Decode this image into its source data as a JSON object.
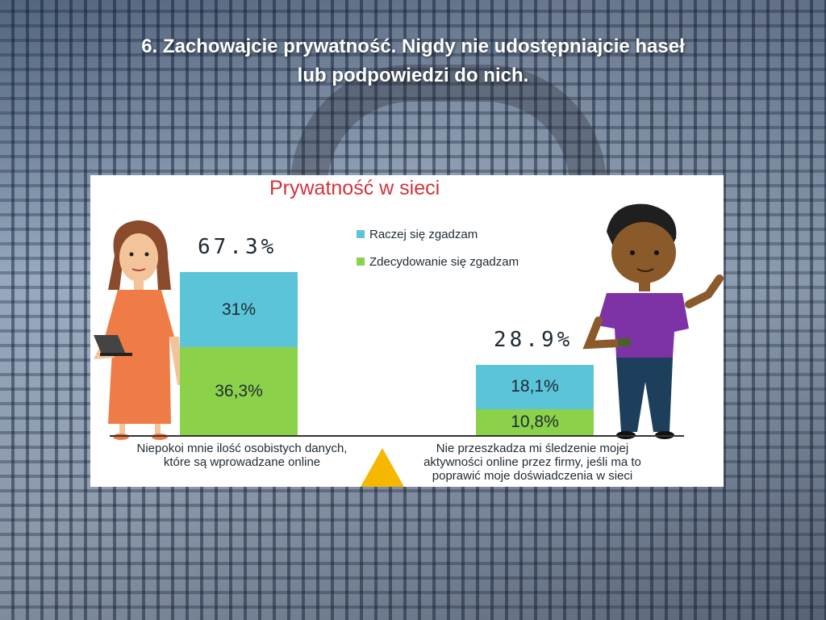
{
  "slide": {
    "title_line1": "6. Zachowajcie prywatność. Nigdy nie udostępniajcie haseł",
    "title_line2": "lub podpowiedzi do nich."
  },
  "colors": {
    "series_top": "#5bc4d9",
    "series_bottom": "#8cd14a",
    "title_red": "#d0343a",
    "triangle": "#f5b700"
  },
  "chart_data": {
    "type": "bar",
    "title": "Prywatność w sieci",
    "stacked": true,
    "categories": [
      "Niepokoi mnie ilość osobistych danych, które są wprowadzane online",
      "Nie przeszkadza mi śledzenie mojej aktywności online przez firmy, jeśli ma to poprawić moje doświadczenia w sieci"
    ],
    "category_lines": [
      [
        "Niepokoi mnie ilość osobistych danych,",
        "które są wprowadzane online"
      ],
      [
        "Nie przeszkadza mi śledzenie mojej",
        "aktywności online przez firmy, jeśli ma to",
        "poprawić moje doświadczenia w sieci"
      ]
    ],
    "series": [
      {
        "name": "Zdecydowanie się zgadzam",
        "values": [
          36.3,
          10.8
        ],
        "labels": [
          "36,3%",
          "10,8%"
        ]
      },
      {
        "name": "Raczej się zgadzam",
        "values": [
          31,
          18.1
        ],
        "labels": [
          "31%",
          "18,1%"
        ]
      }
    ],
    "totals": [
      67.3,
      28.9
    ],
    "total_labels": [
      "67.3%",
      "28.9%"
    ],
    "legend": [
      "Raczej się zgadzam",
      "Zdecydowanie się zgadzam"
    ],
    "legend_position": "top-center",
    "ylim": [
      0,
      100
    ],
    "grid": false
  }
}
